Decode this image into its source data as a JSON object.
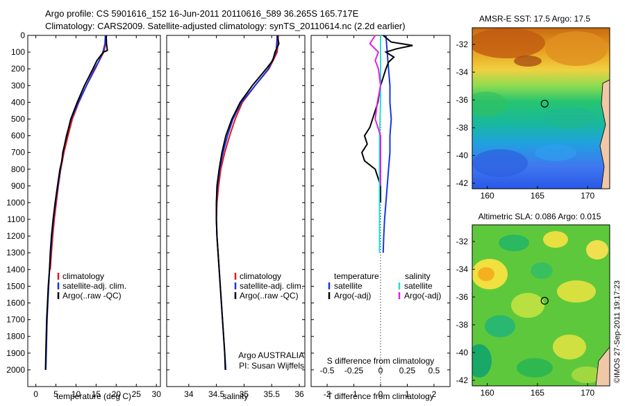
{
  "header": {
    "line1": "Argo profile: CS 5901616_152 16-Jun-2011 20110616_589 36.265S 165.717E",
    "line2": "Climatology: CARS2009. Satellite-adjusted climatology: synTS_20110614.nc (2.2d earlier)"
  },
  "credit": "©IMOS 27-Sep-2011 19:17:23",
  "chart_data": [
    {
      "type": "line",
      "id": "temperature",
      "xlabel": "temperature (deg C)",
      "xlim": [
        -2,
        31
      ],
      "xticks": [
        0,
        5,
        10,
        15,
        20,
        25,
        30
      ],
      "ylim": [
        0,
        2100
      ],
      "yticks": [
        0,
        100,
        200,
        300,
        400,
        500,
        600,
        700,
        800,
        900,
        1000,
        1100,
        1200,
        1300,
        1400,
        1500,
        1600,
        1700,
        1800,
        1900,
        2000
      ],
      "legend": [
        "climatology",
        "satellite-adj. clim.",
        "Argo(..raw -QC)"
      ],
      "series": [
        {
          "name": "climatology",
          "color": "#e8141c",
          "depth": [
            0,
            50,
            100,
            150,
            200,
            300,
            400,
            500,
            600,
            700,
            800,
            900,
            1000,
            1100,
            1200,
            1300,
            1400
          ],
          "values": [
            17.6,
            17.4,
            16.9,
            15.8,
            14.8,
            12.6,
            10.7,
            9.1,
            8.0,
            7.0,
            6.2,
            5.6,
            5.1,
            4.6,
            4.2,
            3.9,
            3.6
          ]
        },
        {
          "name": "satellite-adj. clim.",
          "color": "#1436e6",
          "depth": [
            0,
            50,
            100,
            150,
            200,
            300,
            400,
            500,
            600,
            700,
            800,
            900,
            1000,
            1100,
            1200,
            1300,
            1400,
            1500,
            1600,
            1700,
            1800,
            1900,
            2000
          ],
          "values": [
            17.3,
            17.2,
            16.7,
            15.8,
            14.6,
            12.6,
            10.6,
            8.8,
            7.6,
            6.8,
            6.1,
            5.5,
            4.9,
            4.4,
            4.0,
            3.7,
            3.4,
            3.2,
            3.0,
            2.8,
            2.7,
            2.6,
            2.5
          ]
        },
        {
          "name": "Argo(..raw -QC)",
          "color": "#000000",
          "depth": [
            0,
            50,
            90,
            100,
            150,
            200,
            300,
            400,
            500,
            600,
            700,
            750,
            800,
            900,
            1000,
            1100,
            1200,
            1300,
            1400,
            1500,
            1600,
            1700,
            1800,
            1900,
            2000
          ],
          "values": [
            17.5,
            17.6,
            17.8,
            16.8,
            15.2,
            14.2,
            12.1,
            10.3,
            8.7,
            7.7,
            6.7,
            6.5,
            6.0,
            5.4,
            4.8,
            4.3,
            3.9,
            3.6,
            3.4,
            3.1,
            2.9,
            2.7,
            2.6,
            2.5,
            2.4
          ]
        }
      ]
    },
    {
      "type": "line",
      "id": "salinity",
      "xlabel": "salinity",
      "xlim": [
        33.6,
        36.1
      ],
      "xticks": [
        34,
        34.5,
        35,
        35.5,
        36
      ],
      "ylim": [
        0,
        2100
      ],
      "legend": [
        "climatology",
        "satellite-adj. clim.",
        "Argo(..raw -QC)"
      ],
      "annotation": [
        "Argo AUSTRALIA",
        "PI: Susan Wijffels"
      ],
      "series": [
        {
          "name": "climatology",
          "color": "#e8141c",
          "depth": [
            0,
            100,
            200,
            300,
            400,
            500,
            600,
            700,
            800,
            900,
            1000,
            1100,
            1200,
            1300,
            1400
          ],
          "values": [
            35.62,
            35.6,
            35.45,
            35.2,
            34.97,
            34.84,
            34.74,
            34.65,
            34.58,
            34.54,
            34.51,
            34.5,
            34.51,
            34.53,
            34.55
          ]
        },
        {
          "name": "satellite-adj. clim.",
          "color": "#1436e6",
          "depth": [
            0,
            100,
            200,
            300,
            400,
            500,
            600,
            700,
            800,
            900,
            1000,
            1100,
            1200,
            1300,
            1400,
            1500,
            1600,
            1700,
            1800,
            1900,
            2000
          ],
          "values": [
            35.6,
            35.58,
            35.44,
            35.2,
            34.95,
            34.8,
            34.7,
            34.62,
            34.56,
            34.52,
            34.5,
            34.5,
            34.51,
            34.53,
            34.55,
            34.57,
            34.59,
            34.61,
            34.63,
            34.65,
            34.67
          ]
        },
        {
          "name": "Argo(..raw -QC)",
          "color": "#000000",
          "depth": [
            0,
            50,
            100,
            150,
            200,
            300,
            400,
            500,
            600,
            700,
            800,
            900,
            1000,
            1100,
            1200,
            1300,
            1400,
            1500,
            1600,
            1700,
            1800,
            1900,
            2000
          ],
          "values": [
            35.6,
            35.63,
            35.56,
            35.52,
            35.4,
            35.15,
            34.93,
            34.78,
            34.67,
            34.6,
            34.55,
            34.51,
            34.5,
            34.5,
            34.51,
            34.53,
            34.55,
            34.57,
            34.59,
            34.61,
            34.63,
            34.65,
            34.66
          ]
        }
      ]
    },
    {
      "type": "line",
      "id": "difference",
      "xlabel": "T difference from climatology",
      "xlabel_top": "S difference from climatology",
      "xlim": [
        -2.6,
        2.6
      ],
      "xticks": [
        -2,
        -1,
        0,
        1,
        2
      ],
      "xticks_top": [
        "-0.5",
        "-0.25",
        "0",
        "0.25",
        "0.5"
      ],
      "ylim": [
        0,
        2100
      ],
      "legend_left_title": "temperature",
      "legend_right_title": "salinity",
      "legend": [
        "satellite",
        "Argo(-adj)",
        "satellite",
        "Argo(-adj)"
      ],
      "series": [
        {
          "name": "satellite",
          "group": "temperature",
          "color": "#1436e6",
          "depth": [
            0,
            100,
            200,
            300,
            400,
            500,
            600,
            700,
            800,
            900,
            1000,
            1100,
            1200,
            1300
          ],
          "values": [
            0.2,
            0.25,
            0.3,
            0.35,
            0.35,
            0.4,
            0.35,
            0.35,
            0.3,
            0.25,
            0.2,
            0.15,
            0.12,
            0.1
          ]
        },
        {
          "name": "Argo(-adj)",
          "group": "temperature",
          "color": "#000000",
          "depth": [
            0,
            40,
            60,
            80,
            100,
            130,
            160,
            200,
            300,
            400,
            500,
            550,
            600,
            650,
            700,
            750,
            800,
            850,
            900,
            950,
            1000
          ],
          "values": [
            0.1,
            0.4,
            1.2,
            0.6,
            0.2,
            0.5,
            0.3,
            0.2,
            0.0,
            -0.1,
            -0.3,
            -0.4,
            -0.6,
            -0.5,
            -0.7,
            -0.6,
            -0.2,
            -0.1,
            0.0,
            0.0,
            0.0
          ]
        },
        {
          "name": "satellite",
          "group": "salinity",
          "color": "#22dddd",
          "depth": [
            0,
            200,
            400,
            600,
            800,
            1000,
            1200,
            1300
          ],
          "values": [
            0.0,
            0.0,
            0.0,
            -0.01,
            -0.01,
            -0.01,
            -0.01,
            -0.01
          ]
        },
        {
          "name": "Argo(-adj)",
          "group": "salinity",
          "color": "#e020e0",
          "depth": [
            0,
            50,
            100,
            150,
            200,
            300,
            400,
            500,
            600,
            700,
            800,
            900
          ],
          "values": [
            -0.05,
            -0.1,
            -0.02,
            -0.05,
            -0.02,
            0.0,
            -0.03,
            -0.05,
            0.0,
            0.0,
            0.0,
            0.0
          ]
        }
      ]
    },
    {
      "type": "heatmap",
      "id": "sst-map",
      "title": "AMSR-E SST: 17.5 Argo: 17.5",
      "xticks": [
        "160",
        "165",
        "170"
      ],
      "yticks": [
        "-32",
        "-34",
        "-36",
        "-38",
        "-40",
        "-42"
      ],
      "marker": {
        "lon": 165.717,
        "lat": -36.265
      }
    },
    {
      "type": "heatmap",
      "id": "sla-map",
      "title": "Altimetric SLA: 0.086 Argo: 0.015",
      "xticks": [
        "160",
        "165",
        "170"
      ],
      "yticks": [
        "-32",
        "-34",
        "-36",
        "-38",
        "-40",
        "-42"
      ],
      "marker": {
        "lon": 165.717,
        "lat": -36.265
      }
    }
  ]
}
